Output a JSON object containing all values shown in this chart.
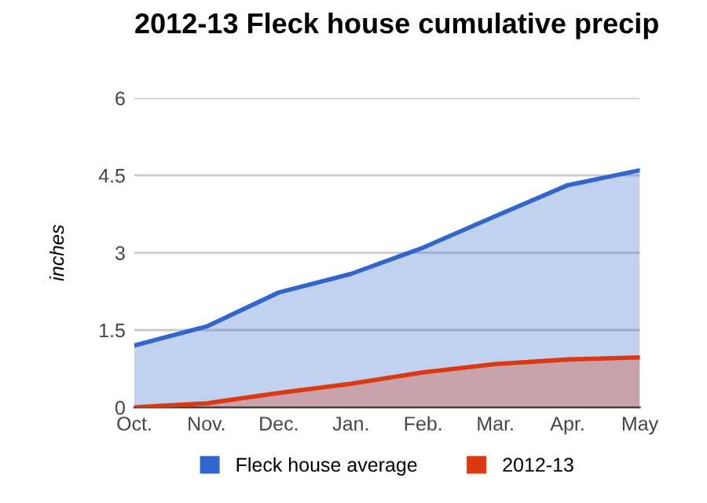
{
  "chart_data": {
    "type": "area",
    "title": "2012-13 Fleck house cumulative precip",
    "ylabel": "inches",
    "categories": [
      "Oct.",
      "Nov.",
      "Dec.",
      "Jan.",
      "Feb.",
      "Mar.",
      "Apr.",
      "May"
    ],
    "series": [
      {
        "name": "Fleck house average",
        "color": "#3366cc",
        "values": [
          1.2,
          1.57,
          2.23,
          2.59,
          3.1,
          3.71,
          4.31,
          4.6
        ]
      },
      {
        "name": "2012-13",
        "color": "#dc3912",
        "values": [
          0,
          0.08,
          0.28,
          0.46,
          0.68,
          0.84,
          0.93,
          0.97
        ]
      }
    ],
    "ylim": [
      0,
      6
    ],
    "yticks": [
      0,
      1.5,
      3,
      4.5,
      6
    ],
    "grid": "y",
    "legend": "bottom"
  }
}
